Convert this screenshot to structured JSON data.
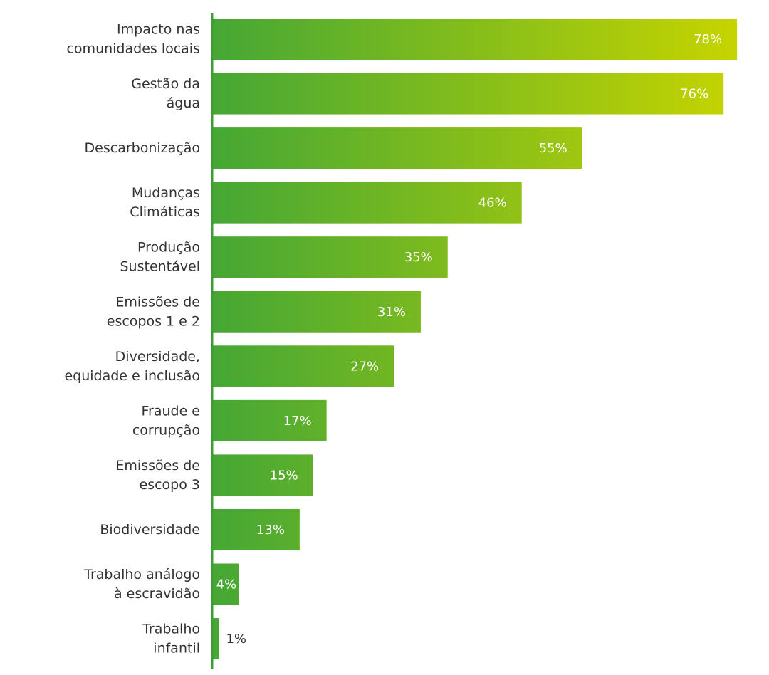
{
  "chart_data": {
    "type": "bar",
    "orientation": "horizontal",
    "categories": [
      "Impacto nas\ncomunidades locais",
      "Gestão da\nágua",
      "Descarbonização",
      "Mudanças\nClimáticas",
      "Produção\nSustentável",
      "Emissões de\nescopos 1 e 2",
      "Diversidade,\nequidade e inclusão",
      "Fraude e\ncorrupção",
      "Emissões de\nescopo 3",
      "Biodiversidade",
      "Trabalho análogo\nà escravidão",
      "Trabalho\ninfantil"
    ],
    "values": [
      78,
      76,
      55,
      46,
      35,
      31,
      27,
      17,
      15,
      13,
      4,
      1
    ],
    "value_labels": [
      "78%",
      "76%",
      "55%",
      "46%",
      "35%",
      "31%",
      "27%",
      "17%",
      "15%",
      "13%",
      "4%",
      "1%"
    ],
    "gradient": [
      "#45a735",
      "#c6d400"
    ],
    "axis_color": "#3e9e34"
  }
}
